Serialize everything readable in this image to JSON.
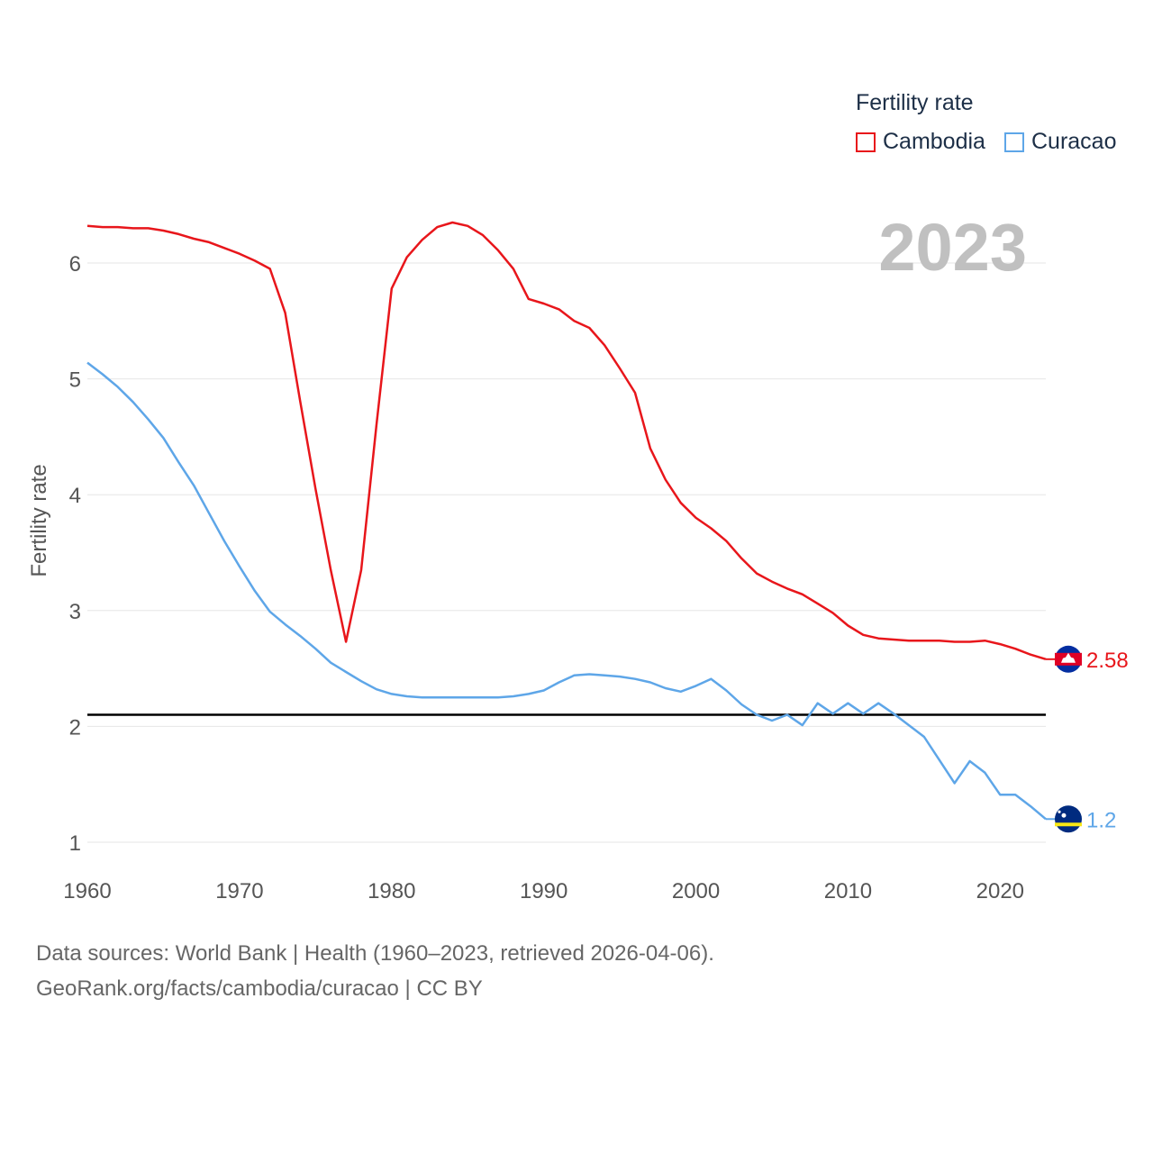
{
  "legend": {
    "title": "Fertility rate"
  },
  "year_label": "2023",
  "footer": {
    "line1": "Data sources: World Bank | Health (1960–2023, retrieved 2026-04-06).",
    "line2": "GeoRank.org/facts/cambodia/curacao | CC BY"
  },
  "chart_data": {
    "type": "line",
    "title": "Fertility rate",
    "ylabel": "Fertility rate",
    "xlabel": "",
    "xlim": [
      1960,
      2023
    ],
    "ylim": [
      1,
      6.5
    ],
    "x_ticks": [
      1960,
      1970,
      1980,
      1990,
      2000,
      2010,
      2020
    ],
    "y_ticks": [
      1,
      2,
      3,
      4,
      5,
      6
    ],
    "reference_line": {
      "value": 2.1
    },
    "x": [
      1960,
      1961,
      1962,
      1963,
      1964,
      1965,
      1966,
      1967,
      1968,
      1969,
      1970,
      1971,
      1972,
      1973,
      1974,
      1975,
      1976,
      1977,
      1978,
      1979,
      1980,
      1981,
      1982,
      1983,
      1984,
      1985,
      1986,
      1987,
      1988,
      1989,
      1990,
      1991,
      1992,
      1993,
      1994,
      1995,
      1996,
      1997,
      1998,
      1999,
      2000,
      2001,
      2002,
      2003,
      2004,
      2005,
      2006,
      2007,
      2008,
      2009,
      2010,
      2011,
      2012,
      2013,
      2014,
      2015,
      2016,
      2017,
      2018,
      2019,
      2020,
      2021,
      2022,
      2023
    ],
    "series": [
      {
        "name": "Cambodia",
        "color": "#e8161b",
        "end_label": "2.58",
        "values": [
          6.32,
          6.31,
          6.31,
          6.3,
          6.3,
          6.28,
          6.25,
          6.21,
          6.18,
          6.13,
          6.08,
          6.02,
          5.95,
          5.57,
          4.8,
          4.05,
          3.35,
          2.73,
          3.35,
          4.6,
          5.78,
          6.05,
          6.2,
          6.31,
          6.35,
          6.32,
          6.24,
          6.11,
          5.95,
          5.69,
          5.65,
          5.6,
          5.5,
          5.44,
          5.29,
          5.09,
          4.88,
          4.4,
          4.13,
          3.93,
          3.8,
          3.71,
          3.6,
          3.45,
          3.32,
          3.25,
          3.19,
          3.14,
          3.06,
          2.98,
          2.87,
          2.79,
          2.76,
          2.75,
          2.74,
          2.74,
          2.74,
          2.73,
          2.73,
          2.74,
          2.71,
          2.67,
          2.62,
          2.58
        ]
      },
      {
        "name": "Curacao",
        "color": "#5ea6e8",
        "end_label": "1.2",
        "values": [
          5.14,
          5.04,
          4.93,
          4.8,
          4.65,
          4.49,
          4.28,
          4.08,
          3.84,
          3.6,
          3.38,
          3.17,
          2.99,
          2.88,
          2.78,
          2.67,
          2.55,
          2.47,
          2.39,
          2.32,
          2.28,
          2.26,
          2.25,
          2.25,
          2.25,
          2.25,
          2.25,
          2.25,
          2.26,
          2.28,
          2.31,
          2.38,
          2.44,
          2.45,
          2.44,
          2.43,
          2.41,
          2.38,
          2.33,
          2.3,
          2.35,
          2.41,
          2.31,
          2.19,
          2.1,
          2.05,
          2.1,
          2.01,
          2.2,
          2.11,
          2.2,
          2.11,
          2.2,
          2.11,
          2.01,
          1.91,
          1.71,
          1.51,
          1.7,
          1.6,
          1.41,
          1.41,
          1.31,
          1.2
        ]
      }
    ]
  }
}
